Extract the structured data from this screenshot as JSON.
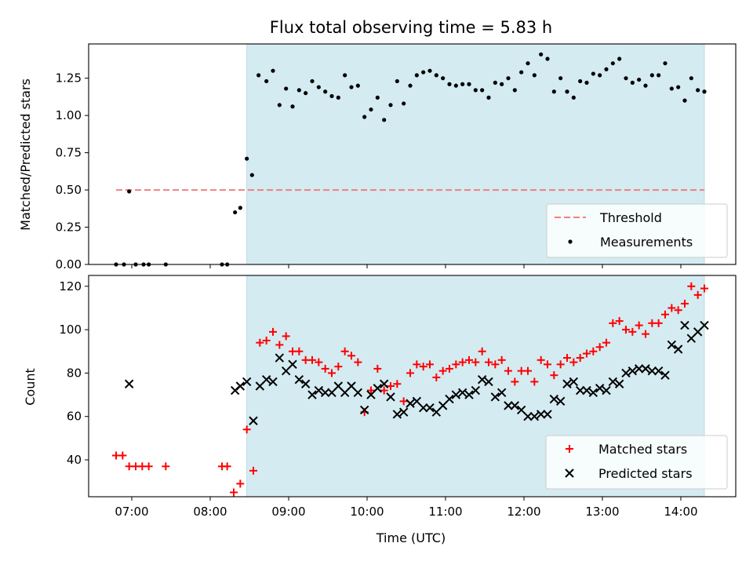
{
  "figure_title": "Flux total observing time = 5.83 h",
  "colors": {
    "observing_band": "#d4ebf1",
    "threshold": "#f08080",
    "measurements": "#000000",
    "matched": "#ff0000",
    "predicted": "#000000"
  },
  "chart_data": [
    {
      "type": "scatter",
      "title": "Flux total observing time = 5.83 h",
      "xlabel": "",
      "ylabel": "Matched/Predicted stars",
      "xlim": [
        "06:27",
        "14:42"
      ],
      "ylim": [
        0,
        1.48
      ],
      "yticks": [
        0.0,
        0.25,
        0.5,
        0.75,
        1.0,
        1.25
      ],
      "ytick_labels": [
        "0.00",
        "0.25",
        "0.50",
        "0.75",
        "1.00",
        "1.25"
      ],
      "grid": false,
      "legend_position": "lower-right",
      "observing_window": [
        "08:28",
        "14:18"
      ],
      "series": [
        {
          "name": "Threshold",
          "style": "dashed-line",
          "x": [
            "06:48",
            "14:18"
          ],
          "y": [
            0.5,
            0.5
          ]
        },
        {
          "name": "Measurements",
          "style": "dot",
          "points": [
            [
              "06:48",
              0.0
            ],
            [
              "06:54",
              0.0
            ],
            [
              "06:58",
              0.49
            ],
            [
              "07:03",
              0.0
            ],
            [
              "07:09",
              0.0
            ],
            [
              "07:13",
              0.0
            ],
            [
              "07:26",
              0.0
            ],
            [
              "08:09",
              0.0
            ],
            [
              "08:13",
              0.0
            ],
            [
              "08:19",
              0.35
            ],
            [
              "08:23",
              0.38
            ],
            [
              "08:28",
              0.71
            ],
            [
              "08:32",
              0.6
            ],
            [
              "08:37",
              1.27
            ],
            [
              "08:43",
              1.23
            ],
            [
              "08:48",
              1.3
            ],
            [
              "08:53",
              1.07
            ],
            [
              "08:58",
              1.18
            ],
            [
              "09:03",
              1.06
            ],
            [
              "09:08",
              1.17
            ],
            [
              "09:13",
              1.15
            ],
            [
              "09:18",
              1.23
            ],
            [
              "09:23",
              1.19
            ],
            [
              "09:28",
              1.16
            ],
            [
              "09:33",
              1.13
            ],
            [
              "09:38",
              1.12
            ],
            [
              "09:43",
              1.27
            ],
            [
              "09:48",
              1.19
            ],
            [
              "09:53",
              1.2
            ],
            [
              "09:58",
              0.99
            ],
            [
              "10:03",
              1.04
            ],
            [
              "10:08",
              1.12
            ],
            [
              "10:13",
              0.97
            ],
            [
              "10:18",
              1.07
            ],
            [
              "10:23",
              1.23
            ],
            [
              "10:28",
              1.08
            ],
            [
              "10:33",
              1.2
            ],
            [
              "10:38",
              1.27
            ],
            [
              "10:43",
              1.29
            ],
            [
              "10:48",
              1.3
            ],
            [
              "10:53",
              1.27
            ],
            [
              "10:58",
              1.25
            ],
            [
              "11:03",
              1.21
            ],
            [
              "11:08",
              1.2
            ],
            [
              "11:13",
              1.21
            ],
            [
              "11:18",
              1.21
            ],
            [
              "11:23",
              1.17
            ],
            [
              "11:28",
              1.17
            ],
            [
              "11:33",
              1.12
            ],
            [
              "11:38",
              1.22
            ],
            [
              "11:43",
              1.21
            ],
            [
              "11:48",
              1.25
            ],
            [
              "11:53",
              1.17
            ],
            [
              "11:58",
              1.29
            ],
            [
              "12:03",
              1.35
            ],
            [
              "12:08",
              1.27
            ],
            [
              "12:13",
              1.41
            ],
            [
              "12:18",
              1.38
            ],
            [
              "12:23",
              1.16
            ],
            [
              "12:28",
              1.25
            ],
            [
              "12:33",
              1.16
            ],
            [
              "12:38",
              1.12
            ],
            [
              "12:43",
              1.23
            ],
            [
              "12:48",
              1.22
            ],
            [
              "12:53",
              1.28
            ],
            [
              "12:58",
              1.27
            ],
            [
              "13:03",
              1.31
            ],
            [
              "13:08",
              1.35
            ],
            [
              "13:13",
              1.38
            ],
            [
              "13:18",
              1.25
            ],
            [
              "13:23",
              1.22
            ],
            [
              "13:28",
              1.24
            ],
            [
              "13:33",
              1.2
            ],
            [
              "13:38",
              1.27
            ],
            [
              "13:43",
              1.27
            ],
            [
              "13:48",
              1.35
            ],
            [
              "13:53",
              1.18
            ],
            [
              "13:58",
              1.19
            ],
            [
              "14:03",
              1.1
            ],
            [
              "14:08",
              1.25
            ],
            [
              "14:13",
              1.17
            ],
            [
              "14:18",
              1.16
            ]
          ]
        }
      ]
    },
    {
      "type": "scatter",
      "title": "",
      "xlabel": "Time (UTC)",
      "ylabel": "Count",
      "xlim": [
        "06:27",
        "14:42"
      ],
      "ylim": [
        23,
        125
      ],
      "xticks": [
        "07:00",
        "08:00",
        "09:00",
        "10:00",
        "11:00",
        "12:00",
        "13:00",
        "14:00"
      ],
      "yticks": [
        40,
        60,
        80,
        100,
        120
      ],
      "grid": false,
      "legend_position": "lower-right",
      "observing_window": [
        "08:28",
        "14:18"
      ],
      "series": [
        {
          "name": "Matched stars",
          "marker": "plus",
          "points": [
            [
              "06:48",
              42
            ],
            [
              "06:53",
              42
            ],
            [
              "06:58",
              37
            ],
            [
              "07:03",
              37
            ],
            [
              "07:08",
              37
            ],
            [
              "07:13",
              37
            ],
            [
              "07:26",
              37
            ],
            [
              "08:09",
              37
            ],
            [
              "08:13",
              37
            ],
            [
              "08:18",
              25
            ],
            [
              "08:23",
              29
            ],
            [
              "08:28",
              54
            ],
            [
              "08:33",
              35
            ],
            [
              "08:38",
              94
            ],
            [
              "08:43",
              95
            ],
            [
              "08:48",
              99
            ],
            [
              "08:53",
              93
            ],
            [
              "08:58",
              97
            ],
            [
              "09:03",
              90
            ],
            [
              "09:08",
              90
            ],
            [
              "09:13",
              86
            ],
            [
              "09:18",
              86
            ],
            [
              "09:23",
              85
            ],
            [
              "09:28",
              82
            ],
            [
              "09:33",
              80
            ],
            [
              "09:38",
              83
            ],
            [
              "09:43",
              90
            ],
            [
              "09:48",
              88
            ],
            [
              "09:53",
              85
            ],
            [
              "09:58",
              62
            ],
            [
              "10:03",
              72
            ],
            [
              "10:08",
              82
            ],
            [
              "10:13",
              72
            ],
            [
              "10:18",
              74
            ],
            [
              "10:23",
              75
            ],
            [
              "10:28",
              67
            ],
            [
              "10:33",
              80
            ],
            [
              "10:38",
              84
            ],
            [
              "10:43",
              83
            ],
            [
              "10:48",
              84
            ],
            [
              "10:53",
              78
            ],
            [
              "10:58",
              81
            ],
            [
              "11:03",
              82
            ],
            [
              "11:08",
              84
            ],
            [
              "11:13",
              85
            ],
            [
              "11:18",
              86
            ],
            [
              "11:23",
              85
            ],
            [
              "11:28",
              90
            ],
            [
              "11:33",
              85
            ],
            [
              "11:38",
              84
            ],
            [
              "11:43",
              86
            ],
            [
              "11:48",
              81
            ],
            [
              "11:53",
              76
            ],
            [
              "11:58",
              81
            ],
            [
              "12:03",
              81
            ],
            [
              "12:08",
              76
            ],
            [
              "12:13",
              86
            ],
            [
              "12:18",
              84
            ],
            [
              "12:23",
              79
            ],
            [
              "12:28",
              84
            ],
            [
              "12:33",
              87
            ],
            [
              "12:38",
              85
            ],
            [
              "12:43",
              87
            ],
            [
              "12:48",
              89
            ],
            [
              "12:53",
              90
            ],
            [
              "12:58",
              92
            ],
            [
              "13:03",
              94
            ],
            [
              "13:08",
              103
            ],
            [
              "13:13",
              104
            ],
            [
              "13:18",
              100
            ],
            [
              "13:23",
              99
            ],
            [
              "13:28",
              102
            ],
            [
              "13:33",
              98
            ],
            [
              "13:38",
              103
            ],
            [
              "13:43",
              103
            ],
            [
              "13:48",
              107
            ],
            [
              "13:53",
              110
            ],
            [
              "13:58",
              109
            ],
            [
              "14:03",
              112
            ],
            [
              "14:08",
              120
            ],
            [
              "14:13",
              116
            ],
            [
              "14:18",
              119
            ]
          ]
        },
        {
          "name": "Predicted stars",
          "marker": "x",
          "points": [
            [
              "06:58",
              75
            ],
            [
              "08:19",
              72
            ],
            [
              "08:23",
              74
            ],
            [
              "08:28",
              76
            ],
            [
              "08:33",
              58
            ],
            [
              "08:38",
              74
            ],
            [
              "08:43",
              77
            ],
            [
              "08:48",
              76
            ],
            [
              "08:53",
              87
            ],
            [
              "08:58",
              81
            ],
            [
              "09:03",
              84
            ],
            [
              "09:08",
              77
            ],
            [
              "09:13",
              75
            ],
            [
              "09:18",
              70
            ],
            [
              "09:23",
              72
            ],
            [
              "09:28",
              71
            ],
            [
              "09:33",
              71
            ],
            [
              "09:38",
              74
            ],
            [
              "09:43",
              71
            ],
            [
              "09:48",
              74
            ],
            [
              "09:53",
              71
            ],
            [
              "09:58",
              63
            ],
            [
              "10:03",
              70
            ],
            [
              "10:08",
              73
            ],
            [
              "10:13",
              75
            ],
            [
              "10:18",
              69
            ],
            [
              "10:23",
              61
            ],
            [
              "10:28",
              62
            ],
            [
              "10:33",
              66
            ],
            [
              "10:38",
              67
            ],
            [
              "10:43",
              64
            ],
            [
              "10:48",
              64
            ],
            [
              "10:53",
              62
            ],
            [
              "10:58",
              65
            ],
            [
              "11:03",
              68
            ],
            [
              "11:08",
              70
            ],
            [
              "11:13",
              71
            ],
            [
              "11:18",
              70
            ],
            [
              "11:23",
              72
            ],
            [
              "11:28",
              77
            ],
            [
              "11:33",
              76
            ],
            [
              "11:38",
              69
            ],
            [
              "11:43",
              71
            ],
            [
              "11:48",
              65
            ],
            [
              "11:53",
              65
            ],
            [
              "11:58",
              63
            ],
            [
              "12:03",
              60
            ],
            [
              "12:08",
              60
            ],
            [
              "12:13",
              61
            ],
            [
              "12:18",
              61
            ],
            [
              "12:23",
              68
            ],
            [
              "12:28",
              67
            ],
            [
              "12:33",
              75
            ],
            [
              "12:38",
              76
            ],
            [
              "12:43",
              72
            ],
            [
              "12:48",
              72
            ],
            [
              "12:53",
              71
            ],
            [
              "12:58",
              73
            ],
            [
              "13:03",
              72
            ],
            [
              "13:08",
              76
            ],
            [
              "13:13",
              75
            ],
            [
              "13:18",
              80
            ],
            [
              "13:23",
              81
            ],
            [
              "13:28",
              82
            ],
            [
              "13:33",
              82
            ],
            [
              "13:38",
              81
            ],
            [
              "13:43",
              81
            ],
            [
              "13:48",
              79
            ],
            [
              "13:53",
              93
            ],
            [
              "13:58",
              91
            ],
            [
              "14:03",
              102
            ],
            [
              "14:08",
              96
            ],
            [
              "14:13",
              99
            ],
            [
              "14:18",
              102
            ]
          ]
        }
      ]
    }
  ]
}
